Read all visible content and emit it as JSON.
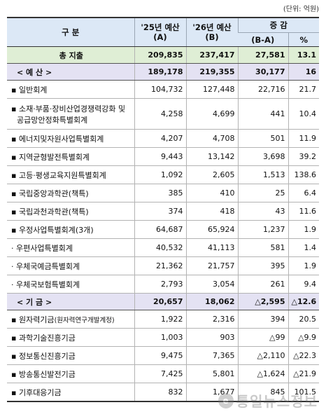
{
  "unit": "(단위: 억원)",
  "header": {
    "category": "구    분",
    "col_25": "'25년 예산",
    "col_25_sub": "(A)",
    "col_26": "'26년 예산",
    "col_26_sub": "(B)",
    "change": "증 감",
    "change_amount": "(B-A)",
    "change_pct": "%"
  },
  "rows": [
    {
      "label": "총 지출",
      "a": "209,835",
      "b": "237,417",
      "diff": "27,581",
      "pct": "13.1"
    },
    {
      "label": "< 예 산 >",
      "a": "189,178",
      "b": "219,355",
      "diff": "30,177",
      "pct": "16"
    },
    {
      "label": "▪ 일반회계",
      "a": "104,732",
      "b": "127,448",
      "diff": "22,716",
      "pct": "21.7"
    },
    {
      "label": "▪ 소재·부품·장비산업경쟁력강화 및",
      "label2": "공급망안정화특별회계",
      "a": "4,258",
      "b": "4,699",
      "diff": "441",
      "pct": "10.4"
    },
    {
      "label": "▪ 에너지및자원사업특별회계",
      "a": "4,207",
      "b": "4,708",
      "diff": "501",
      "pct": "11.9"
    },
    {
      "label": "▪ 지역균형발전특별회계",
      "a": "9,443",
      "b": "13,142",
      "diff": "3,698",
      "pct": "39.2"
    },
    {
      "label": "▪ 고등·평생교육지원특별회계",
      "a": "1,092",
      "b": "2,605",
      "diff": "1,513",
      "pct": "138.6"
    },
    {
      "label": "▪ 국립중앙과학관(책특)",
      "a": "385",
      "b": "410",
      "diff": "25",
      "pct": "6.4"
    },
    {
      "label": "▪ 국립과천과학관(책특)",
      "a": "374",
      "b": "418",
      "diff": "43",
      "pct": "11.6"
    },
    {
      "label": "▪ 우정사업특별회계(3개)",
      "a": "64,687",
      "b": "65,924",
      "diff": "1,237",
      "pct": "1.9"
    },
    {
      "label": "· 우편사업특별회계",
      "a": "40,532",
      "b": "41,113",
      "diff": "581",
      "pct": "1.4"
    },
    {
      "label": "· 우체국예금특별회계",
      "a": "21,362",
      "b": "21,757",
      "diff": "395",
      "pct": "1.9"
    },
    {
      "label": "· 우체국보험특별회계",
      "a": "2,793",
      "b": "3,054",
      "diff": "261",
      "pct": "9.4"
    },
    {
      "label": "< 기 금 >",
      "a": "20,657",
      "b": "18,062",
      "diff": "△2,595",
      "pct": "△12.6"
    },
    {
      "label": "▪ 원자력기금",
      "label_small": "(원자력연구개발계정)",
      "a": "1,922",
      "b": "2,316",
      "diff": "394",
      "pct": "20.5"
    },
    {
      "label": "▪ 과학기술진흥기금",
      "a": "1,003",
      "b": "903",
      "diff": "△99",
      "pct": "△9.9"
    },
    {
      "label": "▪ 정보통신진흥기금",
      "a": "9,475",
      "b": "7,365",
      "diff": "△2,110",
      "pct": "△22.3"
    },
    {
      "label": "▪ 방송통신발전기금",
      "a": "7,425",
      "b": "5,801",
      "diff": "△1,624",
      "pct": "△21.9"
    },
    {
      "label": "▪ 기후대응기금",
      "a": "832",
      "b": "1,677",
      "diff": "845",
      "pct": "101.5"
    }
  ],
  "watermark": {
    "logo": "e",
    "text": "통일뉴스정보"
  }
}
